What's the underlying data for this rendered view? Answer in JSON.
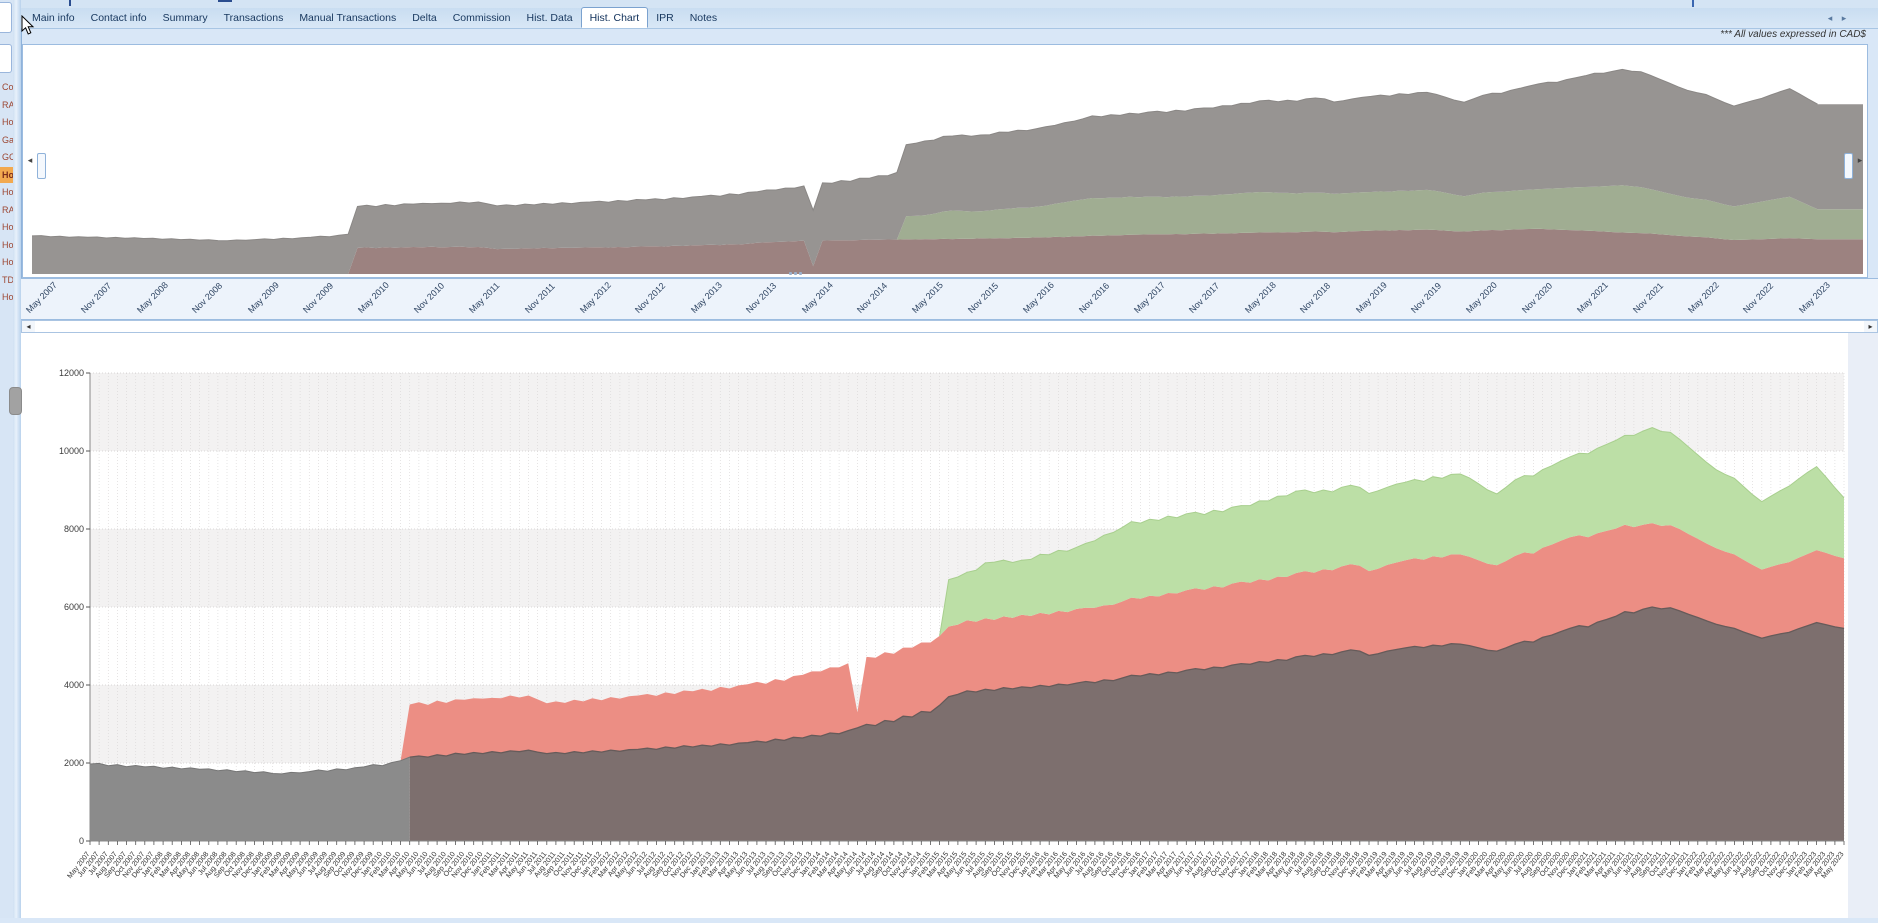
{
  "window": {
    "note": "*** All values expressed in CAD$"
  },
  "tabs": {
    "items": [
      "Main info",
      "Contact info",
      "Summary",
      "Transactions",
      "Manual Transactions",
      "Delta",
      "Commission",
      "Hist. Data",
      "Hist. Chart",
      "IPR",
      "Notes"
    ],
    "active": "Hist. Chart",
    "scroll_left_icon": "◂",
    "scroll_right_icon": "▸"
  },
  "sidebar": {
    "items": [
      "Co",
      "RA",
      "Ho",
      "Ga",
      "GC",
      "Ho",
      "Ho",
      "RA",
      "Ho",
      "Ho",
      "Ho",
      "TD",
      "Ho"
    ],
    "highlighted_index": 5
  },
  "overview": {
    "timeline_labels": [
      "May 2007",
      "Nov 2007",
      "May 2008",
      "Nov 2008",
      "May 2009",
      "Nov 2009",
      "May 2010",
      "Nov 2010",
      "May 2011",
      "Nov 2011",
      "May 2012",
      "Nov 2012",
      "May 2013",
      "Nov 2013",
      "May 2014",
      "Nov 2014",
      "May 2015",
      "Nov 2015",
      "May 2016",
      "Nov 2016",
      "May 2017",
      "Nov 2017",
      "May 2018",
      "Nov 2018",
      "May 2019",
      "Nov 2019",
      "May 2020",
      "Nov 2020",
      "May 2021",
      "Nov 2021",
      "May 2022",
      "Nov 2022",
      "May 2023"
    ],
    "left_arrow_icon": "◂",
    "right_arrow_icon": "▸",
    "colors": {
      "red": "#9c8280",
      "green": "#a0ad92",
      "gray": "#979492"
    }
  },
  "hscrollbar": {
    "left_icon": "◂",
    "right_icon": "▸"
  },
  "chart_data": {
    "type": "area",
    "stacked": true,
    "title": "",
    "xlabel": "",
    "ylabel": "",
    "ylim": [
      0,
      12000
    ],
    "y_ticks": [
      "0",
      "2000",
      "4000",
      "6000",
      "8000",
      "10000",
      "12000"
    ],
    "grid": "vertical-dotted-monthly, horizontal-dotted-2000, alternating-bands",
    "legend": "none",
    "colors": {
      "gray_early": "#8b8b8b",
      "gray_late": "#7d6f6e",
      "red": "#ec8e84",
      "green": "#bcdfa6"
    },
    "x": [
      "May 2007",
      "Jun 2007",
      "Jul 2007",
      "Aug 2007",
      "Sep 2007",
      "Oct 2007",
      "Nov 2007",
      "Dec 2007",
      "Jan 2008",
      "Feb 2008",
      "Mar 2008",
      "Apr 2008",
      "May 2008",
      "Jun 2008",
      "Jul 2008",
      "Aug 2008",
      "Sep 2008",
      "Oct 2008",
      "Nov 2008",
      "Dec 2008",
      "Jan 2009",
      "Feb 2009",
      "Mar 2009",
      "Apr 2009",
      "May 2009",
      "Jun 2009",
      "Jul 2009",
      "Aug 2009",
      "Sep 2009",
      "Oct 2009",
      "Nov 2009",
      "Dec 2009",
      "Jan 2010",
      "Feb 2010",
      "Mar 2010",
      "Apr 2010",
      "May 2010",
      "Jun 2010",
      "Jul 2010",
      "Aug 2010",
      "Sep 2010",
      "Oct 2010",
      "Nov 2010",
      "Dec 2010",
      "Jan 2011",
      "Feb 2011",
      "Mar 2011",
      "Apr 2011",
      "May 2011",
      "Jun 2011",
      "Jul 2011",
      "Aug 2011",
      "Sep 2011",
      "Oct 2011",
      "Nov 2011",
      "Dec 2011",
      "Jan 2012",
      "Feb 2012",
      "Mar 2012",
      "Apr 2012",
      "May 2012",
      "Jun 2012",
      "Jul 2012",
      "Aug 2012",
      "Sep 2012",
      "Oct 2012",
      "Nov 2012",
      "Dec 2012",
      "Jan 2013",
      "Feb 2013",
      "Mar 2013",
      "Apr 2013",
      "May 2013",
      "Jun 2013",
      "Jul 2013",
      "Aug 2013",
      "Sep 2013",
      "Oct 2013",
      "Nov 2013",
      "Dec 2013",
      "Jan 2014",
      "Feb 2014",
      "Mar 2014",
      "Apr 2014",
      "May 2014",
      "Jun 2014",
      "Jul 2014",
      "Aug 2014",
      "Sep 2014",
      "Oct 2014",
      "Nov 2014",
      "Dec 2014",
      "Jan 2015",
      "Feb 2015",
      "Mar 2015",
      "Apr 2015",
      "May 2015",
      "Jun 2015",
      "Jul 2015",
      "Aug 2015",
      "Sep 2015",
      "Oct 2015",
      "Nov 2015",
      "Dec 2015",
      "Jan 2016",
      "Feb 2016",
      "Mar 2016",
      "Apr 2016",
      "May 2016",
      "Jun 2016",
      "Jul 2016",
      "Aug 2016",
      "Sep 2016",
      "Oct 2016",
      "Nov 2016",
      "Dec 2016",
      "Jan 2017",
      "Feb 2017",
      "Mar 2017",
      "Apr 2017",
      "May 2017",
      "Jun 2017",
      "Jul 2017",
      "Aug 2017",
      "Sep 2017",
      "Oct 2017",
      "Nov 2017",
      "Dec 2017",
      "Jan 2018",
      "Feb 2018",
      "Mar 2018",
      "Apr 2018",
      "May 2018",
      "Jun 2018",
      "Jul 2018",
      "Aug 2018",
      "Sep 2018",
      "Oct 2018",
      "Nov 2018",
      "Dec 2018",
      "Jan 2019",
      "Feb 2019",
      "Mar 2019",
      "Apr 2019",
      "May 2019",
      "Jun 2019",
      "Jul 2019",
      "Aug 2019",
      "Sep 2019",
      "Oct 2019",
      "Nov 2019",
      "Dec 2019",
      "Jan 2020",
      "Feb 2020",
      "Mar 2020",
      "Apr 2020",
      "May 2020",
      "Jun 2020",
      "Jul 2020",
      "Aug 2020",
      "Sep 2020",
      "Oct 2020",
      "Nov 2020",
      "Dec 2020",
      "Jan 2021",
      "Feb 2021",
      "Mar 2021",
      "Apr 2021",
      "May 2021",
      "Jun 2021",
      "Jul 2021",
      "Aug 2021",
      "Sep 2021",
      "Oct 2021",
      "Nov 2021",
      "Dec 2021",
      "Jan 2022",
      "Feb 2022",
      "Mar 2022",
      "Apr 2022",
      "May 2022",
      "Jun 2022",
      "Jul 2022",
      "Aug 2022",
      "Sep 2022",
      "Oct 2022",
      "Nov 2022",
      "Dec 2022",
      "Jan 2023",
      "Feb 2023",
      "Mar 2023",
      "Apr 2023",
      "May 2023"
    ],
    "series": [
      {
        "name": "series-gray",
        "values": [
          1975,
          1990,
          1930,
          1960,
          1905,
          1935,
          1900,
          1915,
          1865,
          1895,
          1850,
          1875,
          1840,
          1850,
          1800,
          1825,
          1780,
          1800,
          1755,
          1775,
          1730,
          1720,
          1760,
          1745,
          1780,
          1820,
          1790,
          1850,
          1825,
          1880,
          1900,
          1960,
          1930,
          2010,
          2060,
          2150,
          2180,
          2150,
          2210,
          2180,
          2250,
          2220,
          2270,
          2240,
          2290,
          2260,
          2310,
          2290,
          2330,
          2280,
          2240,
          2270,
          2240,
          2290,
          2260,
          2310,
          2280,
          2330,
          2300,
          2340,
          2350,
          2380,
          2350,
          2410,
          2380,
          2440,
          2410,
          2460,
          2430,
          2490,
          2460,
          2510,
          2520,
          2560,
          2530,
          2610,
          2580,
          2660,
          2640,
          2710,
          2690,
          2770,
          2750,
          2830,
          2900,
          2990,
          2960,
          3090,
          3060,
          3200,
          3180,
          3320,
          3300,
          3480,
          3700,
          3760,
          3850,
          3820,
          3890,
          3860,
          3930,
          3900,
          3950,
          3930,
          3990,
          3960,
          4020,
          4000,
          4050,
          4090,
          4060,
          4130,
          4110,
          4180,
          4250,
          4230,
          4290,
          4260,
          4330,
          4310,
          4380,
          4420,
          4390,
          4460,
          4440,
          4510,
          4550,
          4530,
          4600,
          4580,
          4650,
          4630,
          4720,
          4760,
          4730,
          4800,
          4780,
          4850,
          4900,
          4870,
          4760,
          4800,
          4870,
          4910,
          4950,
          4990,
          4960,
          5020,
          5000,
          5060,
          5050,
          5010,
          4950,
          4890,
          4870,
          4950,
          5050,
          5120,
          5100,
          5220,
          5280,
          5370,
          5450,
          5520,
          5490,
          5610,
          5680,
          5760,
          5880,
          5850,
          5940,
          6000,
          5950,
          5980,
          5900,
          5810,
          5730,
          5640,
          5560,
          5500,
          5450,
          5360,
          5280,
          5200,
          5260,
          5310,
          5350,
          5440,
          5520,
          5600,
          5550,
          5490,
          5450
        ]
      },
      {
        "name": "series-red",
        "values": [
          0,
          0,
          0,
          0,
          0,
          0,
          0,
          0,
          0,
          0,
          0,
          0,
          0,
          0,
          0,
          0,
          0,
          0,
          0,
          0,
          0,
          0,
          0,
          0,
          0,
          0,
          0,
          0,
          0,
          0,
          0,
          0,
          0,
          0,
          0,
          1350,
          1380,
          1340,
          1390,
          1360,
          1380,
          1400,
          1390,
          1410,
          1380,
          1400,
          1420,
          1390,
          1400,
          1350,
          1290,
          1310,
          1300,
          1330,
          1320,
          1350,
          1330,
          1360,
          1350,
          1370,
          1380,
          1390,
          1370,
          1400,
          1390,
          1420,
          1430,
          1440,
          1420,
          1460,
          1450,
          1480,
          1500,
          1520,
          1500,
          1540,
          1530,
          1570,
          1620,
          1640,
          1660,
          1680,
          1700,
          1730,
          400,
          1730,
          1740,
          1750,
          1740,
          1760,
          1780,
          1770,
          1790,
          1780,
          1800,
          1790,
          1810,
          1800,
          1820,
          1810,
          1830,
          1820,
          1850,
          1840,
          1860,
          1850,
          1880,
          1870,
          1900,
          1890,
          1920,
          1910,
          1950,
          1960,
          1990,
          1980,
          2000,
          2010,
          2030,
          2040,
          2050,
          2060,
          2050,
          2070,
          2060,
          2090,
          2100,
          2090,
          2110,
          2100,
          2130,
          2140,
          2150,
          2160,
          2150,
          2170,
          2160,
          2190,
          2200,
          2190,
          2160,
          2180,
          2210,
          2230,
          2250,
          2260,
          2250,
          2280,
          2270,
          2290,
          2300,
          2280,
          2250,
          2220,
          2200,
          2230,
          2260,
          2280,
          2270,
          2300,
          2320,
          2330,
          2340,
          2320,
          2300,
          2280,
          2270,
          2250,
          2230,
          2200,
          2170,
          2150,
          2130,
          2120,
          2100,
          2060,
          2020,
          1980,
          1950,
          1920,
          1900,
          1850,
          1800,
          1760,
          1770,
          1790,
          1800,
          1820,
          1840,
          1860,
          1840,
          1820,
          1800
        ]
      },
      {
        "name": "series-green",
        "values": [
          0,
          0,
          0,
          0,
          0,
          0,
          0,
          0,
          0,
          0,
          0,
          0,
          0,
          0,
          0,
          0,
          0,
          0,
          0,
          0,
          0,
          0,
          0,
          0,
          0,
          0,
          0,
          0,
          0,
          0,
          0,
          0,
          0,
          0,
          0,
          0,
          0,
          0,
          0,
          0,
          0,
          0,
          0,
          0,
          0,
          0,
          0,
          0,
          0,
          0,
          0,
          0,
          0,
          0,
          0,
          0,
          0,
          0,
          0,
          0,
          0,
          0,
          0,
          0,
          0,
          0,
          0,
          0,
          0,
          0,
          0,
          0,
          0,
          0,
          0,
          0,
          0,
          0,
          0,
          0,
          0,
          0,
          0,
          0,
          0,
          0,
          0,
          0,
          0,
          0,
          0,
          0,
          0,
          0,
          1200,
          1220,
          1230,
          1320,
          1420,
          1480,
          1440,
          1420,
          1400,
          1450,
          1500,
          1530,
          1550,
          1560,
          1580,
          1650,
          1720,
          1800,
          1850,
          1900,
          1950,
          1940,
          1960,
          1950,
          1970,
          1940,
          1960,
          1950,
          1930,
          1950,
          1940,
          1960,
          1950,
          1980,
          2010,
          2040,
          2060,
          2080,
          2100,
          2080,
          2050,
          2030,
          2010,
          2030,
          2020,
          2010,
          1990,
          2000,
          1990,
          2010,
          2000,
          2020,
          2010,
          2040,
          2030,
          2050,
          2060,
          2020,
          1960,
          1890,
          1830,
          1890,
          1950,
          1970,
          1990,
          2000,
          2020,
          2040,
          2060,
          2100,
          2140,
          2180,
          2220,
          2260,
          2290,
          2350,
          2400,
          2450,
          2420,
          2380,
          2300,
          2230,
          2150,
          2080,
          2010,
          1980,
          1950,
          1880,
          1800,
          1740,
          1810,
          1880,
          1950,
          2020,
          2090,
          2140,
          1950,
          1750,
          1550
        ]
      }
    ]
  }
}
